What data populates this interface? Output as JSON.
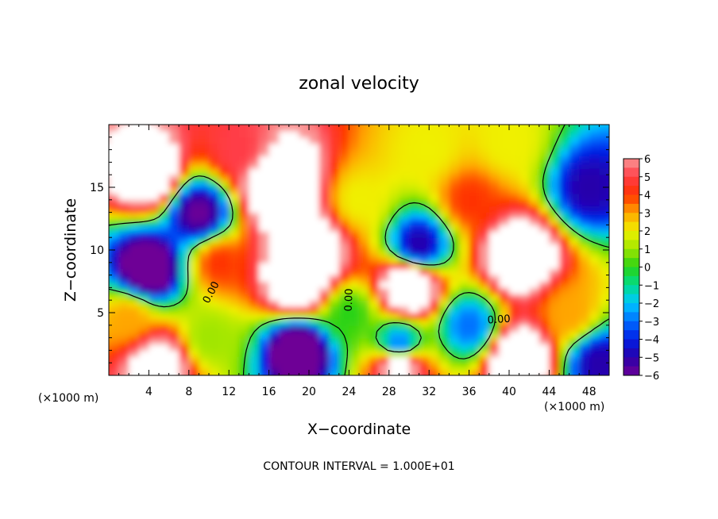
{
  "chart_data": {
    "type": "heatmap",
    "title": "zonal velocity",
    "xlabel": "X−coordinate",
    "ylabel": "Z−coordinate",
    "x_unit": "(×1000 m)",
    "y_unit": "(×1000 m)",
    "xlim": [
      0,
      50
    ],
    "ylim": [
      0,
      20
    ],
    "x_ticks": [
      "4",
      "8",
      "12",
      "16",
      "20",
      "24",
      "28",
      "32",
      "36",
      "40",
      "44",
      "48"
    ],
    "y_ticks": [
      "5",
      "10",
      "15"
    ],
    "colorbar": {
      "min": -6,
      "max": 6,
      "labels": [
        "6",
        "5",
        "4",
        "3",
        "2",
        "1",
        "0",
        "−1",
        "−2",
        "−3",
        "−4",
        "−5",
        "−6"
      ]
    },
    "contour_labels": [
      "0.00",
      "0.00",
      "0.00"
    ],
    "footer": "CONTOUR INTERVAL = 1.000E+01",
    "field_sources": [
      {
        "x": 4,
        "z": 16,
        "v": 9
      },
      {
        "x": 4,
        "z": 8.5,
        "v": -8
      },
      {
        "x": 2,
        "z": 4.5,
        "v": 3
      },
      {
        "x": 5,
        "z": 1,
        "v": 8
      },
      {
        "x": 9,
        "z": 13,
        "v": -6
      },
      {
        "x": 10,
        "z": 3,
        "v": 1
      },
      {
        "x": 13,
        "z": 18,
        "v": 5
      },
      {
        "x": 11,
        "z": 9,
        "v": 4
      },
      {
        "x": 17,
        "z": 15,
        "v": 11
      },
      {
        "x": 19,
        "z": 7.5,
        "v": 10
      },
      {
        "x": 20,
        "z": 10,
        "v": 9
      },
      {
        "x": 19,
        "z": 2,
        "v": -8
      },
      {
        "x": 25,
        "z": 14,
        "v": 2
      },
      {
        "x": 24,
        "z": 5,
        "v": 0
      },
      {
        "x": 31,
        "z": 10.5,
        "v": -5
      },
      {
        "x": 30,
        "z": 7,
        "v": 10
      },
      {
        "x": 29,
        "z": 2.5,
        "v": -3
      },
      {
        "x": 29,
        "z": 0.8,
        "v": 8
      },
      {
        "x": 32,
        "z": 18,
        "v": 2
      },
      {
        "x": 36,
        "z": 14,
        "v": 4
      },
      {
        "x": 41,
        "z": 9.5,
        "v": 10
      },
      {
        "x": 36,
        "z": 4,
        "v": -3
      },
      {
        "x": 41,
        "z": 1.5,
        "v": 9
      },
      {
        "x": 46,
        "z": 5,
        "v": 3
      },
      {
        "x": 48,
        "z": 15,
        "v": -5
      },
      {
        "x": 49,
        "z": 1,
        "v": -5
      },
      {
        "x": 40,
        "z": 18.5,
        "v": 2
      }
    ]
  }
}
